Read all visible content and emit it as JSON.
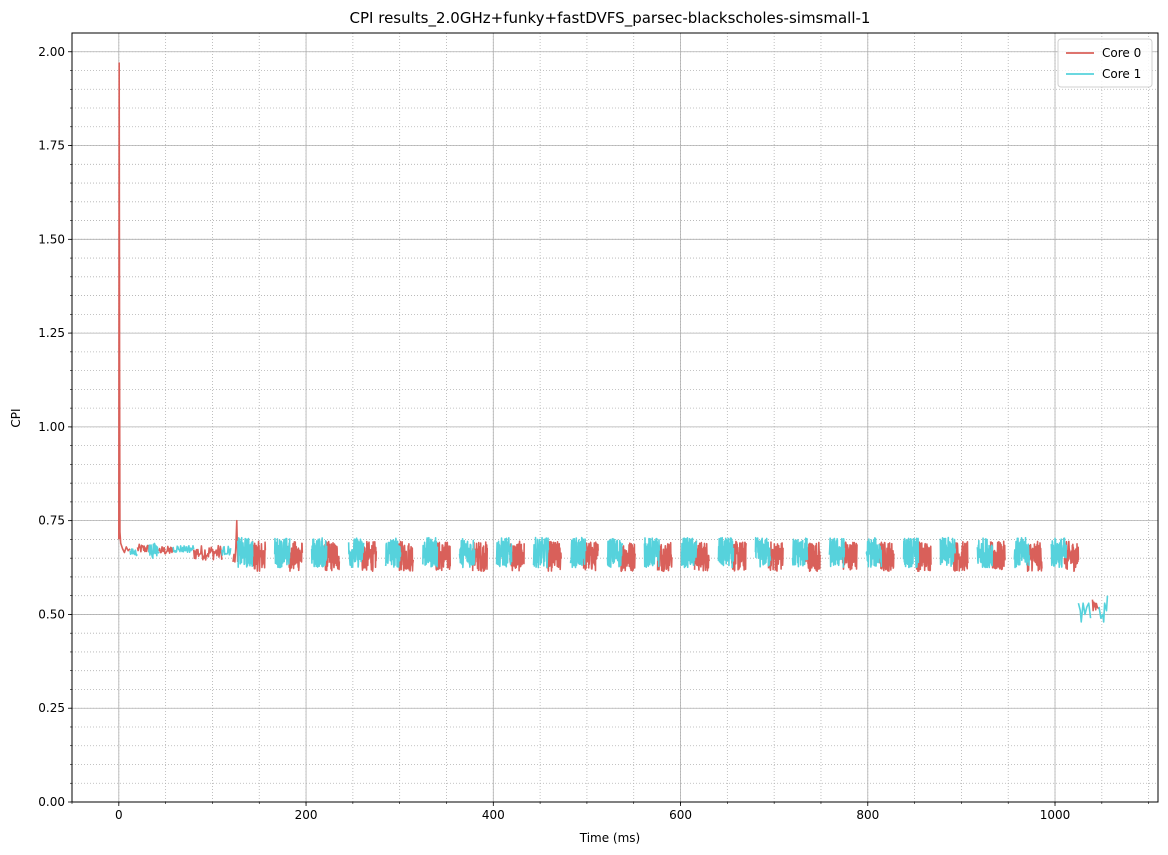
{
  "chart_data": {
    "type": "line",
    "title": "CPI results_2.0GHz+funky+fastDVFS_parsec-blackscholes-simsmall-1",
    "xlabel": "Time (ms)",
    "ylabel": "CPI",
    "xlim": [
      -50,
      1110
    ],
    "ylim": [
      0,
      2.05
    ],
    "xticks": [
      0,
      200,
      400,
      600,
      800,
      1000
    ],
    "xtick_labels": [
      "0",
      "200",
      "400",
      "600",
      "800",
      "1000"
    ],
    "yticks": [
      0,
      0.25,
      0.5,
      0.75,
      1.0,
      1.25,
      1.5,
      1.75,
      2.0
    ],
    "ytick_labels": [
      "0.00",
      "0.25",
      "0.50",
      "0.75",
      "1.00",
      "1.25",
      "1.50",
      "1.75",
      "2.00"
    ],
    "grid": "major solid, minor dotted",
    "legend": "top-right",
    "series": [
      {
        "name": "Core 0",
        "color": "#d9605a",
        "segments": [
          {
            "kind": "points",
            "points": [
              [
                0,
                0.7
              ],
              [
                0.4,
                1.97
              ],
              [
                0.8,
                1.2
              ],
              [
                1.2,
                0.72
              ],
              [
                2,
                0.69
              ],
              [
                4,
                0.675
              ],
              [
                6,
                0.665
              ],
              [
                8,
                0.68
              ],
              [
                10,
                0.67
              ],
              [
                12,
                0.675
              ]
            ]
          },
          {
            "kind": "noise",
            "x0": 20,
            "x1": 32,
            "mean": 0.675,
            "amp": 0.012,
            "n": 20
          },
          {
            "kind": "noise",
            "x0": 43,
            "x1": 58,
            "mean": 0.67,
            "amp": 0.012,
            "n": 24
          },
          {
            "kind": "noise",
            "x0": 80,
            "x1": 110,
            "mean": 0.665,
            "amp": 0.02,
            "n": 40
          },
          {
            "kind": "points",
            "points": [
              [
                122,
                0.64
              ],
              [
                123,
                0.66
              ],
              [
                124,
                0.64
              ],
              [
                125,
                0.68
              ],
              [
                126,
                0.75
              ],
              [
                127,
                0.64
              ]
            ]
          },
          {
            "kind": "bursts",
            "start": 141,
            "end": 1025,
            "period": 39.5,
            "width": 15.5,
            "mean": 0.655,
            "amp": 0.04,
            "n": 60
          },
          {
            "kind": "noise",
            "x0": 1040,
            "x1": 1047,
            "mean": 0.525,
            "amp": 0.015,
            "n": 10
          }
        ]
      },
      {
        "name": "Core 1",
        "color": "#56d2dc",
        "segments": [
          {
            "kind": "noise",
            "x0": 12,
            "x1": 20,
            "mean": 0.665,
            "amp": 0.01,
            "n": 14
          },
          {
            "kind": "noise",
            "x0": 32,
            "x1": 43,
            "mean": 0.67,
            "amp": 0.02,
            "n": 18
          },
          {
            "kind": "noise",
            "x0": 58,
            "x1": 80,
            "mean": 0.675,
            "amp": 0.01,
            "n": 30
          },
          {
            "kind": "noise",
            "x0": 110,
            "x1": 120,
            "mean": 0.67,
            "amp": 0.012,
            "n": 16
          },
          {
            "kind": "bursts",
            "start": 127,
            "end": 1025,
            "period": 39.5,
            "width": 16,
            "mean": 0.665,
            "amp": 0.04,
            "n": 60
          },
          {
            "kind": "points",
            "points": [
              [
                1025,
                0.53
              ],
              [
                1027,
                0.51
              ],
              [
                1028,
                0.48
              ],
              [
                1030,
                0.53
              ],
              [
                1032,
                0.5
              ],
              [
                1034,
                0.52
              ],
              [
                1036,
                0.53
              ],
              [
                1038,
                0.49
              ]
            ]
          },
          {
            "kind": "points",
            "points": [
              [
                1047,
                0.52
              ],
              [
                1049,
                0.49
              ],
              [
                1051,
                0.5
              ],
              [
                1052,
                0.48
              ],
              [
                1053,
                0.53
              ],
              [
                1055,
                0.51
              ],
              [
                1056,
                0.55
              ]
            ]
          }
        ]
      }
    ]
  }
}
